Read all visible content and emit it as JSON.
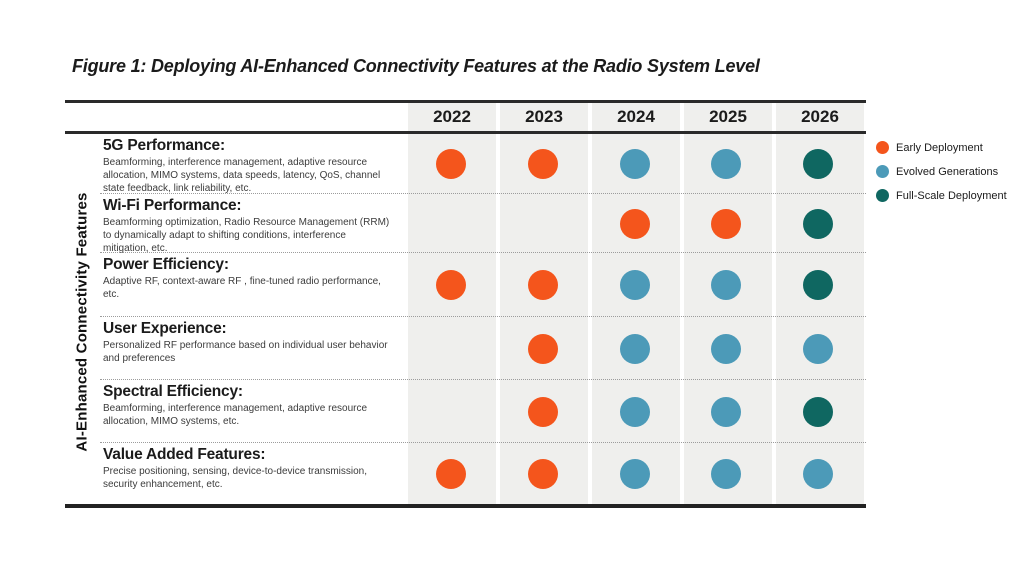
{
  "figure_title": "Figure 1: Deploying AI-Enhanced Connectivity Features at the Radio System Level",
  "chart_data": {
    "type": "heatmap",
    "title": "Figure 1: Deploying AI-Enhanced Connectivity Features at the Radio System Level",
    "x": [
      "2022",
      "2023",
      "2024",
      "2025",
      "2026"
    ],
    "ylabel": "AI-Enhanced Connectivity Features",
    "legend_position": "right",
    "grid": "dotted row separators, shaded year columns",
    "legend": [
      {
        "key": "early",
        "label": "Early Deployment",
        "color": "#F4551C"
      },
      {
        "key": "evolved",
        "label": "Evolved Generations",
        "color": "#4C9AB8"
      },
      {
        "key": "full",
        "label": "Full-Scale Deployment",
        "color": "#0F6761"
      }
    ],
    "colors": {
      "early": "#F4551C",
      "evolved": "#4C9AB8",
      "full": "#0F6761"
    },
    "rows": [
      {
        "label": "5G Performance:",
        "description": "Beamforming, interference management, adaptive resource allocation, MIMO systems, data speeds, latency, QoS, channel state feedback, link reliability, etc.",
        "values": [
          "early",
          "early",
          "evolved",
          "evolved",
          "full"
        ]
      },
      {
        "label": "Wi-Fi Performance:",
        "description": "Beamforming optimization, Radio Resource Management (RRM) to dynamically adapt to shifting conditions, interference mitigation, etc.",
        "values": [
          null,
          null,
          "early",
          "early",
          "full"
        ]
      },
      {
        "label": "Power Efficiency:",
        "description": "Adaptive RF, context-aware RF , fine-tuned radio performance, etc.",
        "values": [
          "early",
          "early",
          "evolved",
          "evolved",
          "full"
        ]
      },
      {
        "label": "User Experience:",
        "description": "Personalized RF performance based on individual user behavior and preferences",
        "values": [
          null,
          "early",
          "evolved",
          "evolved",
          "evolved"
        ]
      },
      {
        "label": "Spectral Efficiency:",
        "description": "Beamforming, interference management, adaptive resource allocation, MIMO systems, etc.",
        "values": [
          null,
          "early",
          "evolved",
          "evolved",
          "full"
        ]
      },
      {
        "label": "Value Added Features:",
        "description": "Precise positioning, sensing, device-to-device transmission, security enhancement,  etc.",
        "values": [
          "early",
          "early",
          "evolved",
          "evolved",
          "evolved"
        ]
      }
    ]
  }
}
